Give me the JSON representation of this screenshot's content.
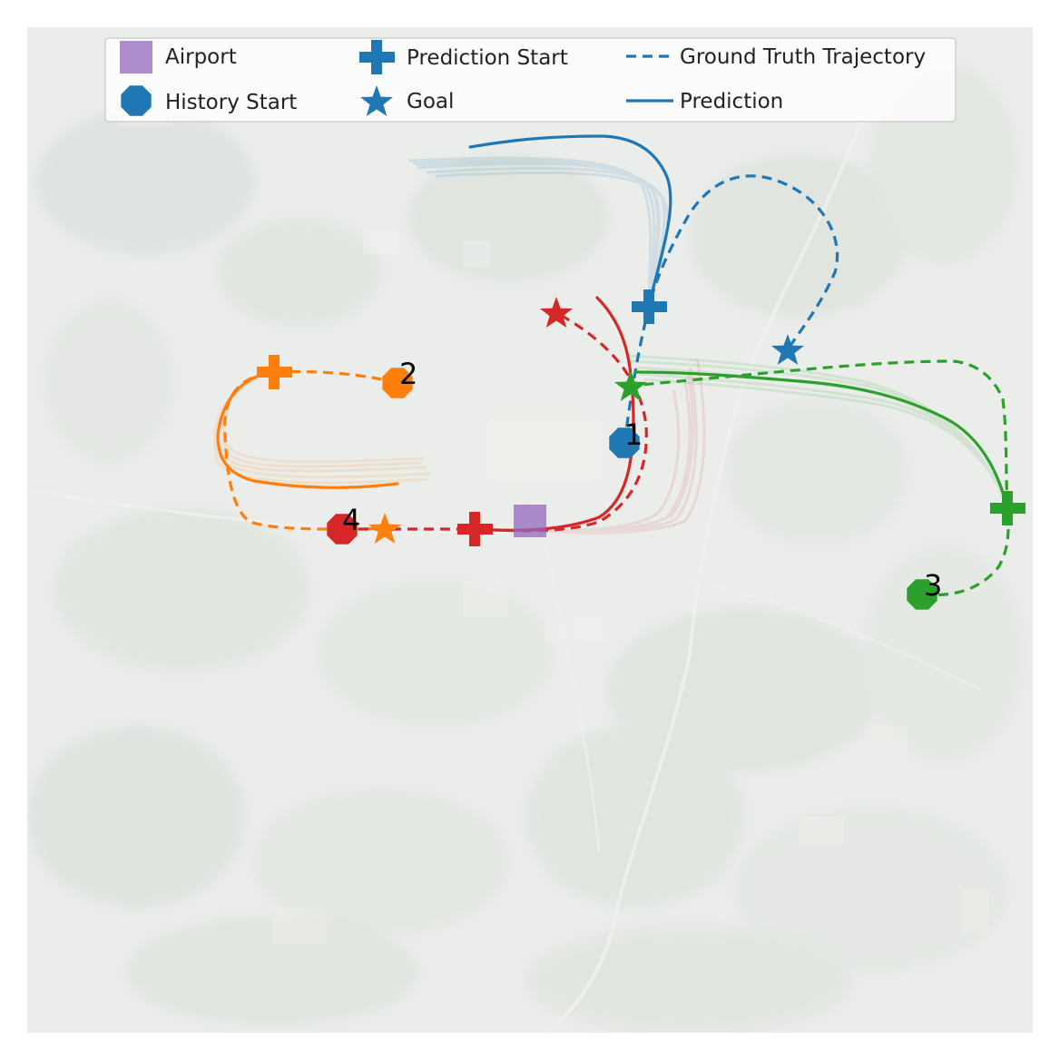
{
  "legend": {
    "airport": "Airport",
    "history_start": "History Start",
    "prediction_start": "Prediction Start",
    "goal": "Goal",
    "ground_truth": "Ground Truth Trajectory",
    "prediction": "Prediction"
  },
  "colors": {
    "agent_1": "#1f77b4",
    "agent_2": "#ff7f0e",
    "agent_3": "#2ca02c",
    "agent_4": "#d62728",
    "airport": "#9467bd"
  },
  "agents": [
    {
      "label": "1",
      "color_key": "agent_1"
    },
    {
      "label": "2",
      "color_key": "agent_2"
    },
    {
      "label": "3",
      "color_key": "agent_3"
    },
    {
      "label": "4",
      "color_key": "agent_4"
    }
  ],
  "legend_icons": {
    "airport": "square-marker-icon",
    "history_start": "octagon-marker-icon",
    "prediction_start": "plus-marker-icon",
    "goal": "star-marker-icon",
    "ground_truth": "dashed-line-icon",
    "prediction": "solid-line-icon"
  }
}
